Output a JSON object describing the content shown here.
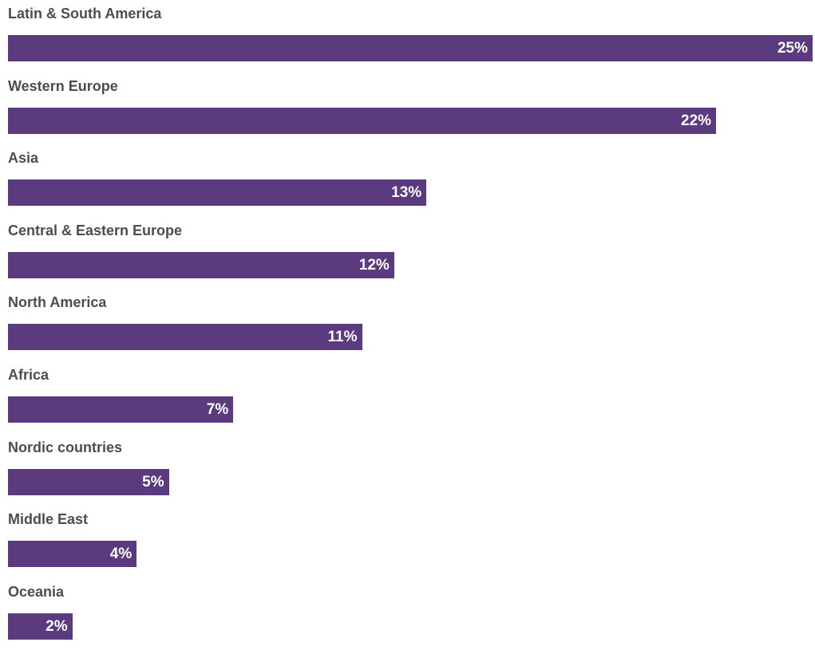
{
  "chart_data": {
    "type": "bar",
    "orientation": "horizontal",
    "bar_color": "#5b3a7e",
    "label_color": "#4d4d4d",
    "value_suffix": "%",
    "categories": [
      "Latin & South America",
      "Western Europe",
      "Asia",
      "Central & Eastern Europe",
      "North America",
      "Africa",
      "Nordic countries",
      "Middle East",
      "Oceania"
    ],
    "values": [
      25,
      22,
      13,
      12,
      11,
      7,
      5,
      4,
      2
    ],
    "labels": [
      "25%",
      "22%",
      "13%",
      "12%",
      "11%",
      "7%",
      "5%",
      "4%",
      "2%"
    ],
    "xlim": [
      0,
      25
    ]
  }
}
